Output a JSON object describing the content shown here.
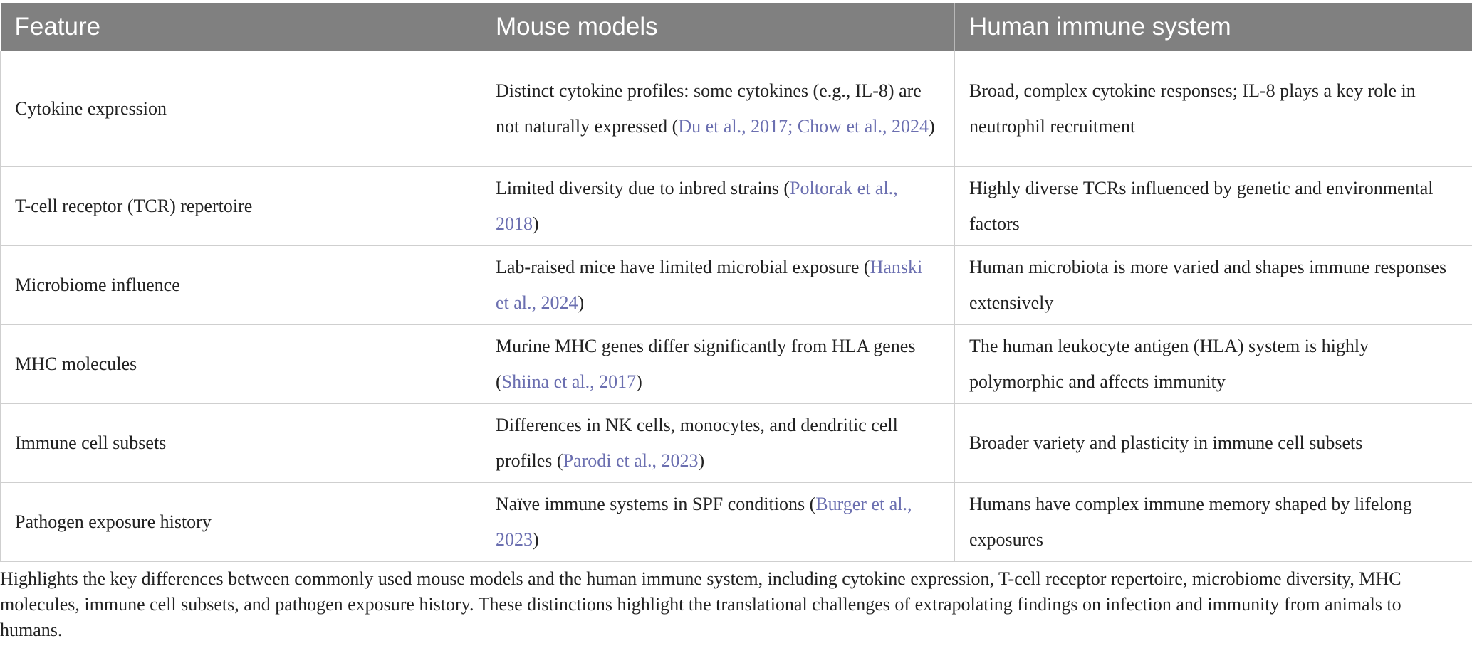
{
  "table": {
    "headers": [
      "Feature",
      "Mouse models",
      "Human immune system"
    ],
    "rows": [
      {
        "feature": "Cytokine expression",
        "mouse_text": "Distinct cytokine profiles: some cytokines (e.g., IL-8) are not naturally expressed (",
        "mouse_citation": "Du et al., 2017; Chow et al., 2024",
        "mouse_end": ")",
        "human": "Broad, complex cytokine responses; IL-8 plays a key role in neutrophil recruitment"
      },
      {
        "feature": "T-cell receptor (TCR) repertoire",
        "mouse_text": "Limited diversity due to inbred strains (",
        "mouse_citation": "Poltorak et al., 2018",
        "mouse_end": ")",
        "human": "Highly diverse TCRs influenced by genetic and environmental factors"
      },
      {
        "feature": "Microbiome influence",
        "mouse_text": "Lab-raised mice have limited microbial exposure (",
        "mouse_citation": "Hanski et al., 2024",
        "mouse_end": ")",
        "human": "Human microbiota is more varied and shapes immune responses extensively"
      },
      {
        "feature": "MHC molecules",
        "mouse_text": "Murine MHC genes differ significantly from HLA genes (",
        "mouse_citation": "Shiina et al., 2017",
        "mouse_end": ")",
        "human": "The human leukocyte antigen (HLA) system is highly polymorphic and affects immunity"
      },
      {
        "feature": "Immune cell subsets",
        "mouse_text": "Differences in NK cells, monocytes, and dendritic cell profiles (",
        "mouse_citation": "Parodi et al., 2023",
        "mouse_end": ")",
        "human": "Broader variety and plasticity in immune cell subsets"
      },
      {
        "feature": "Pathogen exposure history",
        "mouse_text": "Naïve immune systems in SPF conditions (",
        "mouse_citation": "Burger et al., 2023",
        "mouse_end": ")",
        "human": "Humans have complex immune memory shaped by lifelong exposures"
      }
    ]
  },
  "caption": "Highlights the key differences between commonly used mouse models and the human immune system, including cytokine expression, T-cell receptor repertoire, microbiome diversity, MHC molecules, immune cell subsets, and pathogen exposure history. These distinctions highlight the translational challenges of extrapolating findings on infection and immunity from animals to humans."
}
